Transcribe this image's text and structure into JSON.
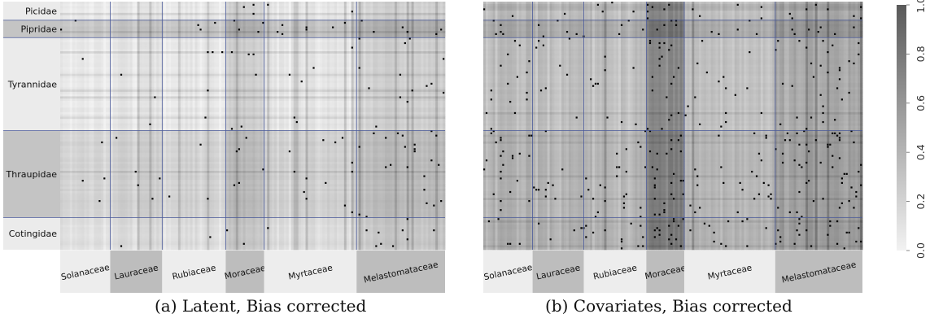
{
  "chart_data": [
    {
      "type": "heatmap",
      "caption": "(a) Latent, Bias corrected",
      "rows": [
        "Picidae",
        "Pipridae",
        "Tyrannidae",
        "Thraupidae",
        "Cotingidae"
      ],
      "columns": [
        "Solanaceae",
        "Lauraceae",
        "Rubiaceae",
        "Moraceae",
        "Myrtaceae",
        "Melastomataceae"
      ],
      "description": "Interaction probability matrix (birds × plants). Mostly light gray (low probabilities) with darker blocks for Moraceae and Melastomataceae columns and for Pipridae/Thraupidae rows; black dots mark observed interactions."
    },
    {
      "type": "heatmap",
      "caption": "(b) Covariates, Bias corrected",
      "rows": [
        "Picidae",
        "Pipridae",
        "Tyrannidae",
        "Thraupidae",
        "Cotingidae"
      ],
      "columns": [
        "Solanaceae",
        "Lauraceae",
        "Rubiaceae",
        "Moraceae",
        "Myrtaceae",
        "Melastomataceae"
      ],
      "description": "Interaction probability matrix (birds × plants). Generally darker than (a), with the Moraceae column nearly saturated and Melastomataceae also dark; black dots mark observed interactions."
    }
  ],
  "colorbar": {
    "min": 0.0,
    "max": 1.0,
    "ticks": [
      "0.0",
      "0.2",
      "0.4",
      "0.6",
      "0.8",
      "1.0"
    ],
    "color_low": "#f2f2f2",
    "color_high": "#595959"
  },
  "colors": {
    "row_band_dark": "#c4c4c4",
    "row_band_light": "#ebebeb",
    "col_band_dark": "#bdbdbd",
    "col_band_light": "#ededed",
    "divider": "#4a5a9a",
    "dot": "#000000"
  }
}
